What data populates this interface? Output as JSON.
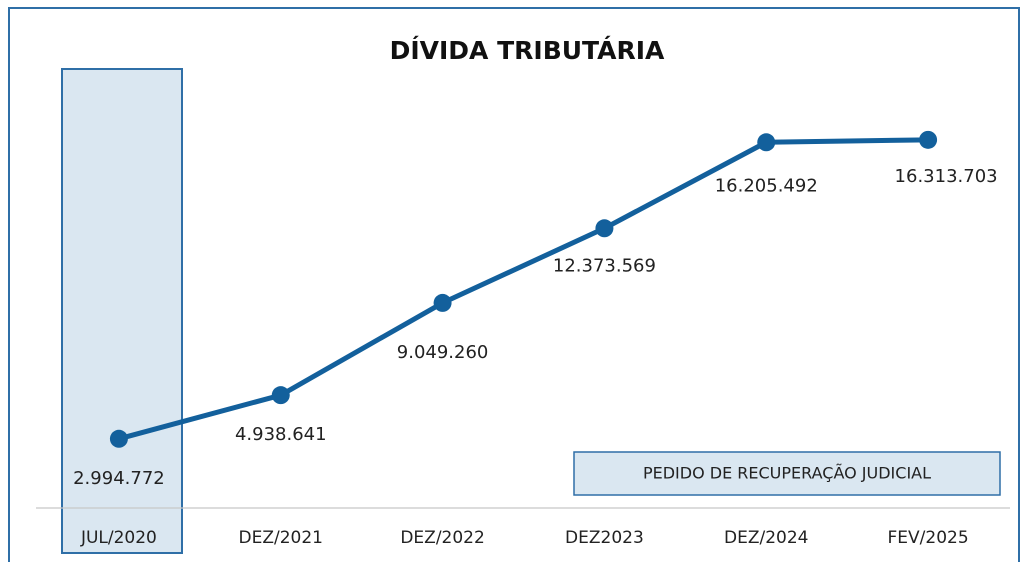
{
  "chart_data": {
    "type": "line",
    "title": "DÍVIDA TRIBUTÁRIA",
    "categories": [
      "JUL/2020",
      "DEZ/2021",
      "DEZ/2022",
      "DEZ2023",
      "DEZ/2024",
      "FEV/2025"
    ],
    "series": [
      {
        "name": "Dívida tributária",
        "color": "#13609c",
        "values": [
          2994772,
          4938641,
          9049260,
          12373569,
          16205492,
          16313703
        ],
        "value_labels": [
          "2.994.772",
          "4.938.641",
          "9.049.260",
          "12.373.569",
          "16.205.492",
          "16.313.703"
        ]
      }
    ],
    "ylim": [
      0,
      18000000
    ],
    "annotation": "PEDIDO DE RECUPERAÇÃO JUDICIAL"
  }
}
